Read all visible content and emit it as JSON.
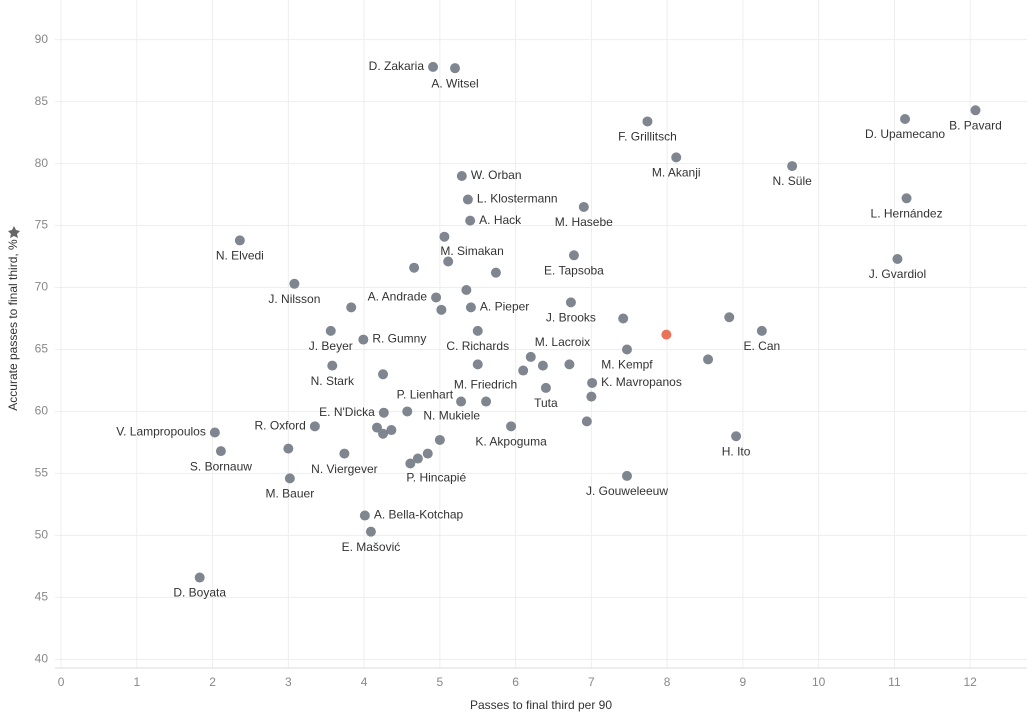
{
  "chart_data": {
    "type": "scatter",
    "x_label": "Passes to final third per 90",
    "y_label": "Accurate passes to final third, %",
    "xlim": [
      -0.08,
      12.75
    ],
    "ylim": [
      39.3,
      93.2
    ],
    "xticks": [
      0,
      1,
      2,
      3,
      4,
      5,
      6,
      7,
      8,
      9,
      10,
      11,
      12
    ],
    "yticks": [
      40,
      45,
      50,
      55,
      60,
      65,
      70,
      75,
      80,
      85,
      90
    ],
    "grid": true,
    "series": [
      {
        "color": "#80868f",
        "labels": [
          "D. Zakaria",
          "A. Witsel",
          "F. Grillitsch",
          "M. Akanji",
          "D. Upamecano",
          "B. Pavard",
          "N. Süle",
          "L. Hernández",
          "J. Gvardiol",
          "W. Orban",
          "L. Klostermann",
          "A. Hack",
          "M. Hasebe",
          "M. Simakan",
          null,
          "N. Elvedi",
          "E. Tapsoba",
          null,
          null,
          "J. Nilsson",
          "A. Andrade",
          null,
          "A. Pieper",
          null,
          null,
          "J. Brooks",
          null,
          null,
          "E. Can",
          "J. Beyer",
          "R. Gumny",
          "C. Richards",
          "M. Lacroix",
          "M. Kempf",
          null,
          "N. Stark",
          null,
          null,
          "M. Friedrich",
          null,
          null,
          "K. Mavropanos",
          "Tuta",
          null,
          "P. Lienhart",
          "N. Mukiele",
          "E. N'Dicka",
          null,
          "K. Akpoguma",
          null,
          "R. Oxford",
          null,
          null,
          null,
          "V. Lampropoulos",
          "H. Ito",
          "S. Bornauw",
          null,
          "N. Viergever",
          null,
          null,
          null,
          "P. Hincapié",
          "J. Gouweleeuw",
          "M. Bauer",
          "A. Bella-Kotchap",
          "E. Mašović",
          "D. Boyata"
        ],
        "x": [
          4.91,
          5.2,
          7.74,
          8.12,
          11.14,
          12.07,
          9.65,
          11.16,
          11.04,
          5.29,
          5.37,
          5.4,
          6.9,
          5.06,
          5.11,
          2.36,
          6.77,
          4.66,
          5.74,
          3.08,
          4.95,
          5.35,
          5.41,
          5.02,
          3.83,
          6.73,
          7.42,
          8.82,
          9.25,
          3.56,
          3.99,
          5.5,
          6.2,
          7.47,
          8.54,
          3.58,
          4.25,
          5.5,
          6.1,
          6.36,
          6.71,
          7.01,
          6.4,
          7.0,
          5.28,
          5.61,
          4.26,
          4.57,
          5.94,
          6.94,
          3.35,
          4.17,
          4.25,
          4.36,
          2.03,
          8.91,
          2.11,
          3.0,
          3.74,
          5.0,
          4.84,
          4.71,
          4.61,
          7.47,
          3.02,
          4.01,
          4.09,
          1.83
        ],
        "y": [
          87.8,
          87.7,
          83.4,
          80.5,
          83.6,
          84.3,
          79.8,
          77.2,
          72.3,
          79.0,
          77.1,
          75.4,
          76.5,
          74.1,
          72.1,
          73.8,
          72.6,
          71.6,
          71.2,
          70.3,
          69.2,
          69.8,
          68.4,
          68.2,
          68.4,
          68.8,
          67.5,
          67.6,
          66.5,
          66.5,
          65.8,
          66.5,
          64.4,
          65.0,
          64.2,
          63.7,
          63.0,
          63.8,
          63.3,
          63.7,
          63.8,
          62.3,
          61.9,
          61.2,
          60.8,
          60.8,
          59.9,
          60.0,
          58.8,
          59.2,
          58.8,
          58.7,
          58.2,
          58.5,
          58.3,
          58.0,
          56.8,
          57.0,
          56.6,
          57.7,
          56.6,
          56.2,
          55.8,
          54.8,
          54.6,
          51.6,
          50.3,
          46.6
        ]
      },
      {
        "color": "#e8735a",
        "x": [
          7.99
        ],
        "y": [
          66.2
        ]
      }
    ]
  }
}
